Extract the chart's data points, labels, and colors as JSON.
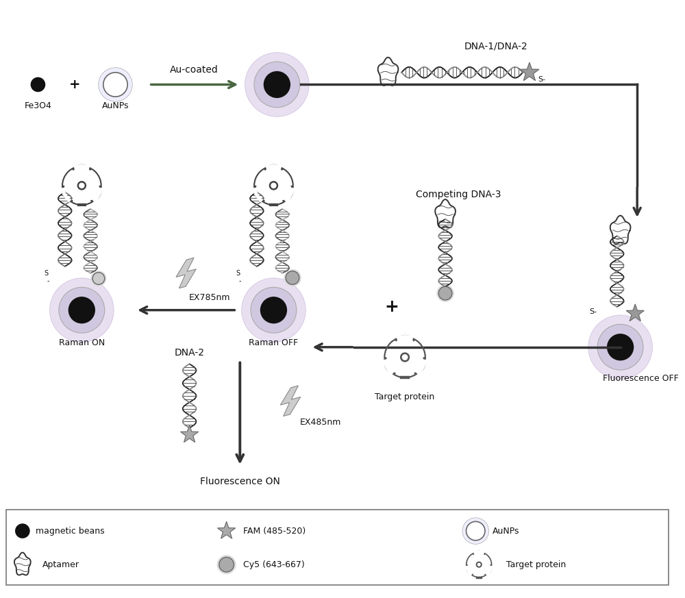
{
  "bg_color": "#ffffff",
  "dark": "#111111",
  "gray": "#777777",
  "lgray": "#aaaaaa",
  "arrow_green": "#4a6741",
  "arrow_dark": "#333333",
  "labels": {
    "fe3o4": "Fe3O4",
    "aunps_label": "AuNPs",
    "au_coated": "Au-coated",
    "dna12": "DNA-1/DNA-2",
    "competing": "Competing DNA-3",
    "fluorescence_off": "Fluorescence OFF",
    "raman_on": "Raman ON",
    "raman_off": "Raman OFF",
    "dna2": "DNA-2",
    "ex785": "EX785nm",
    "ex485": "EX485nm",
    "fluorescence_on": "Fluorescence ON",
    "target_protein": "Target protein",
    "legend_magnetic": "magnetic beans",
    "legend_fam": "FAM (485-520)",
    "legend_aunps": "AuNPs",
    "legend_aptamer": "Aptamer",
    "legend_cy5": "Cy5 (643-667)",
    "legend_target": "Target protein"
  }
}
